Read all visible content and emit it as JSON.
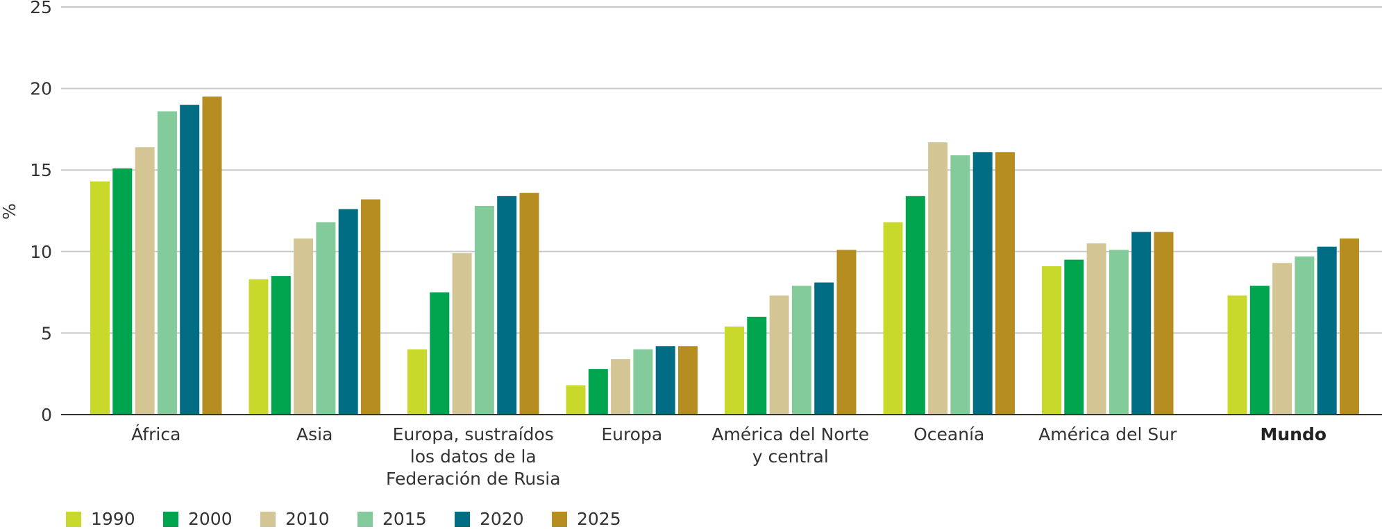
{
  "chart_data": {
    "type": "bar",
    "ylabel": "%",
    "ylim": [
      0,
      25
    ],
    "yticks": [
      0,
      5,
      10,
      15,
      20,
      25
    ],
    "grid": true,
    "legend_position": "bottom-left",
    "categories": [
      [
        "África"
      ],
      [
        "Asia"
      ],
      [
        "Europa, sustraídos",
        "los datos de la",
        "Federación de Rusia"
      ],
      [
        "Europa"
      ],
      [
        "América del Norte",
        "y central"
      ],
      [
        "Oceanía"
      ],
      [
        "América del Sur"
      ],
      [
        "Mundo"
      ]
    ],
    "series": [
      {
        "name": "1990",
        "color": "#c8d92b",
        "values": [
          14.3,
          8.3,
          4.0,
          1.8,
          5.4,
          11.8,
          9.1,
          7.3
        ]
      },
      {
        "name": "2000",
        "color": "#00a34e",
        "values": [
          15.1,
          8.5,
          7.5,
          2.8,
          6.0,
          13.4,
          9.5,
          7.9
        ]
      },
      {
        "name": "2010",
        "color": "#d4c694",
        "values": [
          16.4,
          10.8,
          9.9,
          3.4,
          7.3,
          16.7,
          10.5,
          9.3
        ]
      },
      {
        "name": "2015",
        "color": "#84cb9c",
        "values": [
          18.6,
          11.8,
          12.8,
          4.0,
          7.9,
          15.9,
          10.1,
          9.7
        ]
      },
      {
        "name": "2020",
        "color": "#006d85",
        "values": [
          19.0,
          12.6,
          13.4,
          4.2,
          8.1,
          16.1,
          11.2,
          10.3
        ]
      },
      {
        "name": "2025",
        "color": "#b68d21",
        "values": [
          19.5,
          13.2,
          13.6,
          4.2,
          10.1,
          16.1,
          11.2,
          10.8
        ]
      }
    ]
  }
}
